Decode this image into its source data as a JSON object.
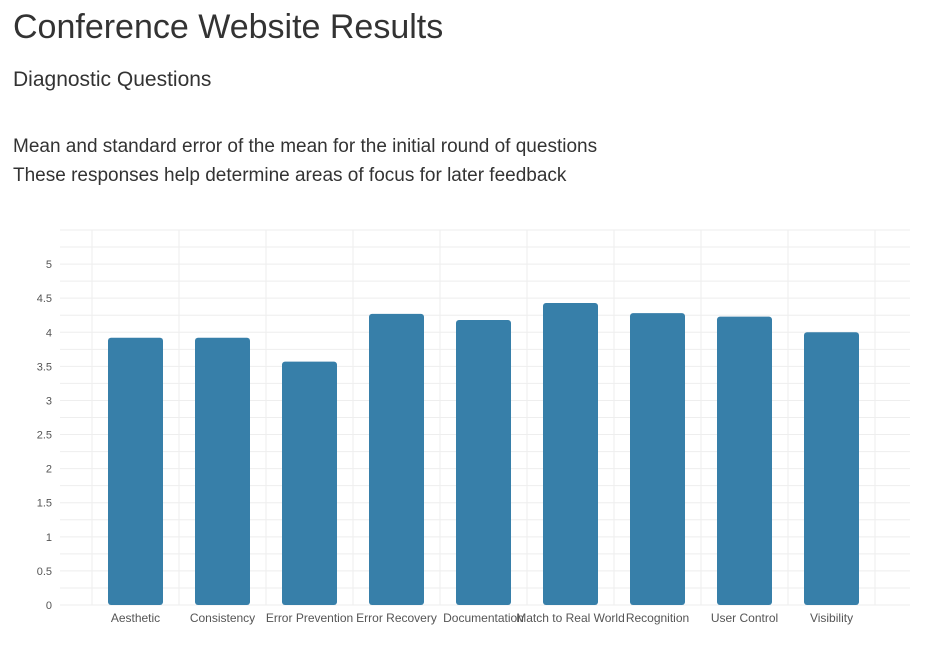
{
  "page": {
    "title": "Conference Website Results",
    "subtitle": "Diagnostic Questions",
    "description_lines": [
      "Mean and standard error of the mean for the initial round of questions",
      "These responses help determine areas of focus for later feedback"
    ]
  },
  "colors": {
    "bar": "#377fa9",
    "grid": "#eeeeee",
    "tick_text": "#555555"
  },
  "chart_data": {
    "type": "bar",
    "categories": [
      "Aesthetic",
      "Consistency",
      "Error Prevention",
      "Error Recovery",
      "Documentation",
      "Match to Real World",
      "Recognition",
      "User Control",
      "Visibility"
    ],
    "values": [
      3.92,
      3.92,
      3.57,
      4.27,
      4.18,
      4.43,
      4.28,
      4.23,
      4.0
    ],
    "yticks": [
      "0",
      "0.5",
      "1",
      "1.5",
      "2",
      "2.5",
      "3",
      "3.5",
      "4",
      "4.5",
      "5"
    ],
    "ylim": [
      0,
      5.5
    ],
    "grid": true,
    "xlabel": "",
    "ylabel": ""
  }
}
